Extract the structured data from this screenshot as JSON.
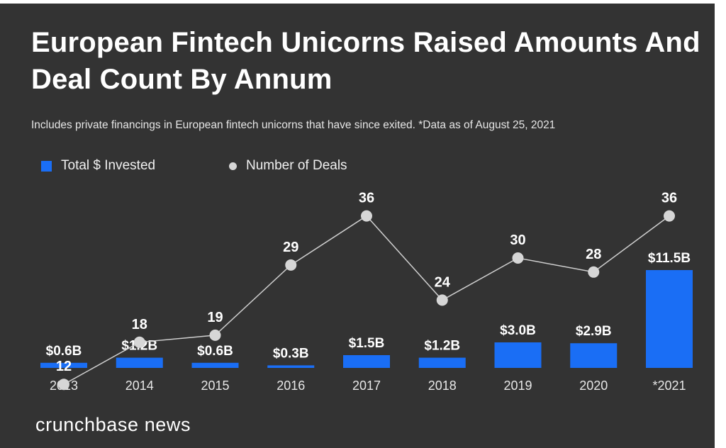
{
  "title": "European Fintech Unicorns Raised Amounts And Deal Count By Annum",
  "subtitle": "Includes private financings in European fintech unicorns that have since exited. *Data as of August 25, 2021",
  "legend": {
    "bars_label": "Total $ Invested",
    "line_label": "Number of Deals"
  },
  "logo_text": "crunchbase news",
  "colors": {
    "background": "#333333",
    "bar": "#1a6ef5",
    "line": "#cfcfcf",
    "point": "#d6d6d6",
    "text": "#ffffff"
  },
  "chart_data": {
    "type": "bar",
    "categories": [
      "2013",
      "2014",
      "2015",
      "2016",
      "2017",
      "2018",
      "2019",
      "2020",
      "*2021"
    ],
    "series": [
      {
        "name": "Total $ Invested",
        "type": "bar",
        "values": [
          0.6,
          1.2,
          0.6,
          0.3,
          1.5,
          1.2,
          3.0,
          2.9,
          11.5
        ],
        "labels": [
          "$0.6B",
          "$1.2B",
          "$0.6B",
          "$0.3B",
          "$1.5B",
          "$1.2B",
          "$3.0B",
          "$2.9B",
          "$11.5B"
        ]
      },
      {
        "name": "Number of Deals",
        "type": "line",
        "values": [
          12,
          18,
          19,
          29,
          36,
          24,
          30,
          28,
          36
        ],
        "labels": [
          "12",
          "18",
          "19",
          "29",
          "36",
          "24",
          "30",
          "28",
          "36"
        ]
      }
    ],
    "legend_position": "top-left",
    "grid": false
  }
}
